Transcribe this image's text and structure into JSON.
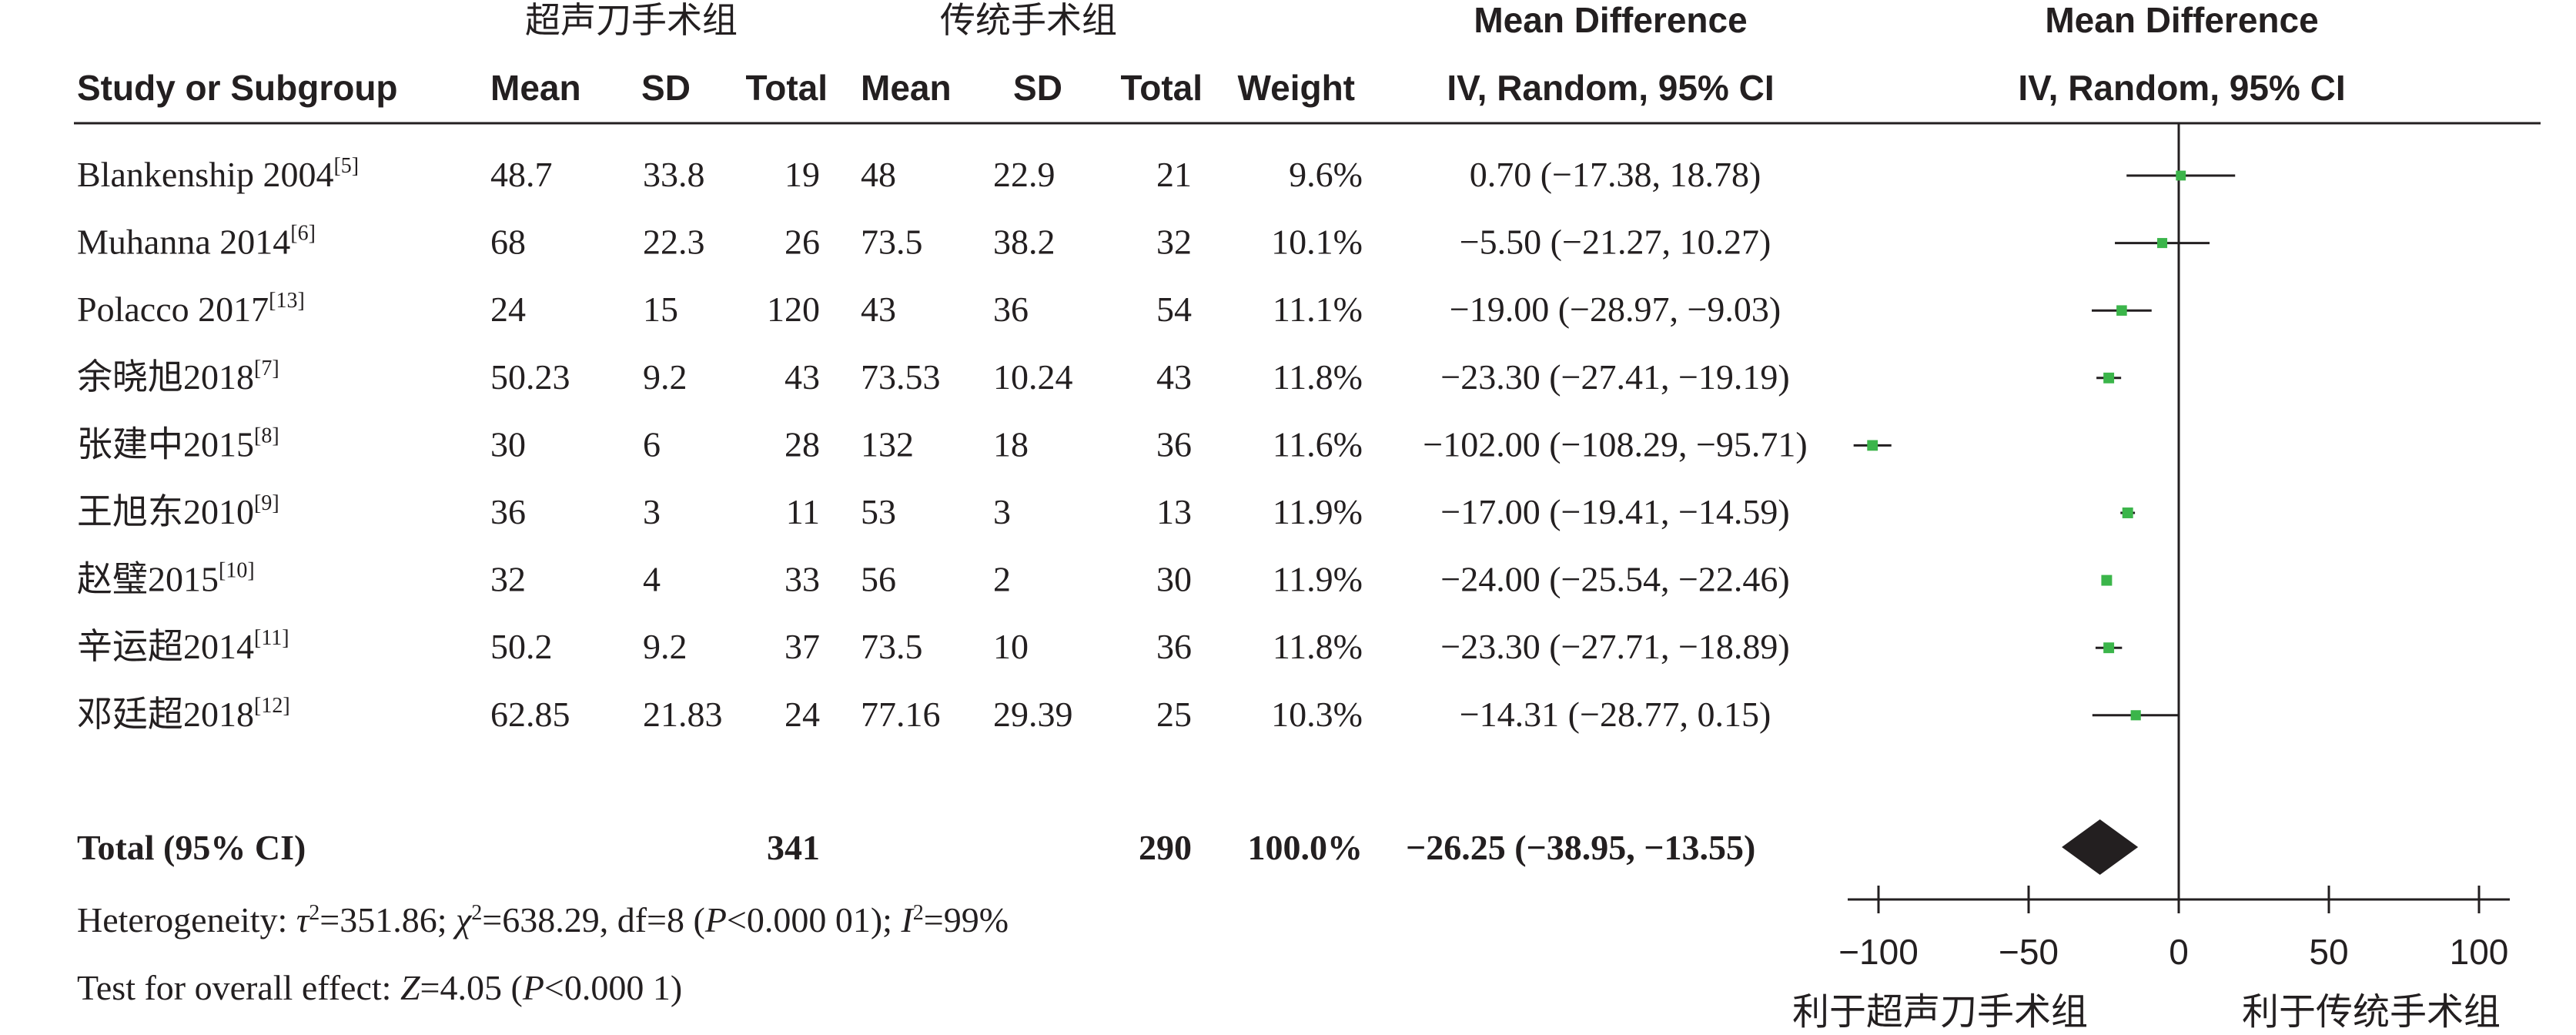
{
  "group_headers": {
    "experimental": "超声刀手术组",
    "control": "传统手术组"
  },
  "md_header": {
    "title": "Mean Difference",
    "method": "IV, Random, 95% CI"
  },
  "plot_header": {
    "title": "Mean Difference",
    "method": "IV, Random, 95% CI"
  },
  "columns": {
    "study": "Study or Subgroup",
    "mean1": "Mean",
    "sd1": "SD",
    "total1": "Total",
    "mean2": "Mean",
    "sd2": "SD",
    "total2": "Total",
    "weight": "Weight"
  },
  "studies": [
    {
      "name": "Blankenship 2004",
      "ref": "[5]",
      "mean1": "48.7",
      "sd1": "33.8",
      "total1": "19",
      "mean2": "48",
      "sd2": "22.9",
      "total2": "21",
      "weight": "9.6%",
      "ci_text": "0.70 (−17.38, 18.78)"
    },
    {
      "name": "Muhanna 2014",
      "ref": "[6]",
      "mean1": "68",
      "sd1": "22.3",
      "total1": "26",
      "mean2": "73.5",
      "sd2": "38.2",
      "total2": "32",
      "weight": "10.1%",
      "ci_text": "−5.50 (−21.27, 10.27)"
    },
    {
      "name": "Polacco 2017",
      "ref": "[13]",
      "mean1": "24",
      "sd1": "15",
      "total1": "120",
      "mean2": "43",
      "sd2": "36",
      "total2": "54",
      "weight": "11.1%",
      "ci_text": "−19.00 (−28.97, −9.03)"
    },
    {
      "name": "余晓旭2018",
      "ref": "[7]",
      "mean1": "50.23",
      "sd1": "9.2",
      "total1": "43",
      "mean2": "73.53",
      "sd2": "10.24",
      "total2": "43",
      "weight": "11.8%",
      "ci_text": "−23.30 (−27.41, −19.19)"
    },
    {
      "name": "张建中2015",
      "ref": "[8]",
      "mean1": "30",
      "sd1": "6",
      "total1": "28",
      "mean2": "132",
      "sd2": "18",
      "total2": "36",
      "weight": "11.6%",
      "ci_text": "−102.00 (−108.29, −95.71)"
    },
    {
      "name": "王旭东2010",
      "ref": "[9]",
      "mean1": "36",
      "sd1": "3",
      "total1": "11",
      "mean2": "53",
      "sd2": "3",
      "total2": "13",
      "weight": "11.9%",
      "ci_text": "−17.00 (−19.41, −14.59)"
    },
    {
      "name": "赵璧2015",
      "ref": "[10]",
      "mean1": "32",
      "sd1": "4",
      "total1": "33",
      "mean2": "56",
      "sd2": "2",
      "total2": "30",
      "weight": "11.9%",
      "ci_text": "−24.00 (−25.54, −22.46)"
    },
    {
      "name": "辛运超2014",
      "ref": "[11]",
      "mean1": "50.2",
      "sd1": "9.2",
      "total1": "37",
      "mean2": "73.5",
      "sd2": "10",
      "total2": "36",
      "weight": "11.8%",
      "ci_text": "−23.30 (−27.71, −18.89)"
    },
    {
      "name": "邓廷超2018",
      "ref": "[12]",
      "mean1": "62.85",
      "sd1": "21.83",
      "total1": "24",
      "mean2": "77.16",
      "sd2": "29.39",
      "total2": "25",
      "weight": "10.3%",
      "ci_text": "−14.31 (−28.77, 0.15)"
    }
  ],
  "total_row": {
    "label": "Total (95% CI)",
    "total1": "341",
    "total2": "290",
    "weight": "100.0%",
    "ci_text": "−26.25 (−38.95, −13.55)"
  },
  "heterogeneity": {
    "prefix": "Heterogeneity: ",
    "tau": "τ",
    "tau_val": "=351.86; ",
    "chi": "χ",
    "chi_val": "=638.29, df=8 (",
    "p": "P",
    "p_val": "<0.000 01); ",
    "i": "I",
    "i_val": "=99%",
    "sq": "2"
  },
  "overall": {
    "prefix": "Test for overall effect: ",
    "z": "Z",
    "z_val": "=4.05 (",
    "p": "P",
    "p_val": "<0.000 1)"
  },
  "axis_labels": {
    "left": "利于超声刀手术组",
    "right": "利于传统手术组"
  },
  "colors": {
    "marker": "#3bb54a",
    "diamond": "#231f20",
    "text": "#231f20"
  },
  "chart_data": {
    "type": "forest",
    "x_ticks": [
      -100,
      -50,
      0,
      50,
      100
    ],
    "xlim": [
      -100,
      100
    ],
    "studies": [
      {
        "name": "Blankenship 2004",
        "md": 0.7,
        "lo": -17.38,
        "hi": 18.78,
        "weight": 9.6
      },
      {
        "name": "Muhanna 2014",
        "md": -5.5,
        "lo": -21.27,
        "hi": 10.27,
        "weight": 10.1
      },
      {
        "name": "Polacco 2017",
        "md": -19.0,
        "lo": -28.97,
        "hi": -9.03,
        "weight": 11.1
      },
      {
        "name": "余晓旭2018",
        "md": -23.3,
        "lo": -27.41,
        "hi": -19.19,
        "weight": 11.8
      },
      {
        "name": "张建中2015",
        "md": -102.0,
        "lo": -108.29,
        "hi": -95.71,
        "weight": 11.6
      },
      {
        "name": "王旭东2010",
        "md": -17.0,
        "lo": -19.41,
        "hi": -14.59,
        "weight": 11.9
      },
      {
        "name": "赵璧2015",
        "md": -24.0,
        "lo": -25.54,
        "hi": -22.46,
        "weight": 11.9
      },
      {
        "name": "辛运超2014",
        "md": -23.3,
        "lo": -27.71,
        "hi": -18.89,
        "weight": 11.8
      },
      {
        "name": "邓廷超2018",
        "md": -14.31,
        "lo": -28.77,
        "hi": 0.15,
        "weight": 10.3
      }
    ],
    "pooled": {
      "md": -26.25,
      "lo": -38.95,
      "hi": -13.55
    }
  }
}
